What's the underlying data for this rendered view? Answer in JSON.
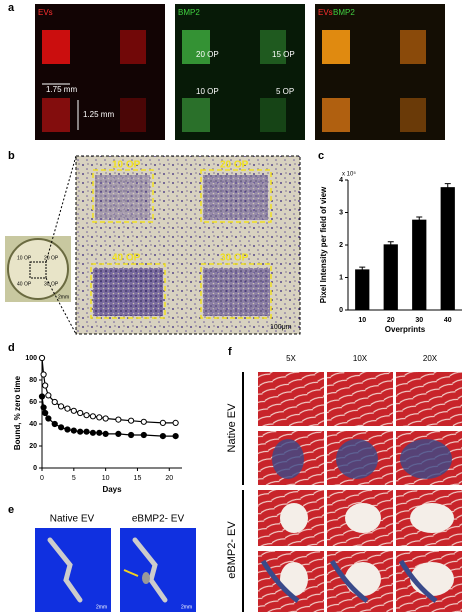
{
  "panel_labels": [
    "a",
    "b",
    "c",
    "d",
    "e",
    "f"
  ],
  "panel_a": {
    "channels": [
      "EVs",
      "BMP2"
    ],
    "merged": [
      "EVs",
      "BMP2"
    ],
    "width": "1.75 mm",
    "height": "1.25 mm",
    "op_labels": [
      "20 OP",
      "15 OP",
      "10 OP",
      "5 OP"
    ]
  },
  "panel_b": {
    "inset_labels": [
      "10 OP",
      "20 OP",
      "40 OP",
      "30 OP"
    ],
    "inset_scale": "2mm",
    "zoom_labels": [
      "10 OP",
      "20 OP",
      "40 OP",
      "30 OP"
    ],
    "zoom_scale": "100μm"
  },
  "panel_e": {
    "labels": [
      "Native EV",
      "eBMP2- EV"
    ],
    "scales": [
      "2mm",
      "2mm"
    ]
  },
  "panel_f": {
    "columns": [
      "5X",
      "10X",
      "20X"
    ],
    "groups": [
      "Native EV",
      "eBMP2- EV"
    ]
  },
  "chart_data": [
    {
      "type": "bar",
      "y_label": "Pixel Intensity per field of view",
      "y_multiplier": "x 10⁵",
      "x_label": "Overprints",
      "categories": [
        "10",
        "20",
        "30",
        "40"
      ],
      "values": [
        1.25,
        2.02,
        2.78,
        3.78
      ],
      "errors": [
        0.07,
        0.08,
        0.08,
        0.11
      ],
      "color": "#000000",
      "ylim": [
        0,
        4
      ],
      "yticks": [
        0,
        1,
        2,
        3,
        4
      ]
    },
    {
      "type": "line",
      "y_label": "Bound, % zero time",
      "x_label": "Days",
      "xlim": [
        0,
        22
      ],
      "xticks": [
        0,
        5,
        10,
        15,
        20
      ],
      "ylim": [
        0,
        100
      ],
      "yticks": [
        0,
        20,
        40,
        60,
        80,
        100
      ],
      "series": [
        {
          "color": "#000000",
          "marker": "open",
          "x": [
            0,
            0.25,
            0.5,
            1,
            2,
            3,
            4,
            5,
            6,
            7,
            8,
            9,
            10,
            12,
            14,
            16,
            19,
            21
          ],
          "values": [
            100,
            85,
            75,
            66,
            60,
            56,
            54,
            52,
            50,
            48,
            47,
            46,
            45,
            44,
            43,
            42,
            41,
            41
          ]
        },
        {
          "color": "#000000",
          "marker": "filled",
          "x": [
            0,
            0.25,
            0.5,
            1,
            2,
            3,
            4,
            5,
            6,
            7,
            8,
            9,
            10,
            12,
            14,
            16,
            19,
            21
          ],
          "values": [
            65,
            55,
            50,
            45,
            40,
            37,
            35,
            34,
            33,
            33,
            32,
            32,
            31,
            31,
            30,
            30,
            29,
            29
          ]
        }
      ]
    }
  ]
}
